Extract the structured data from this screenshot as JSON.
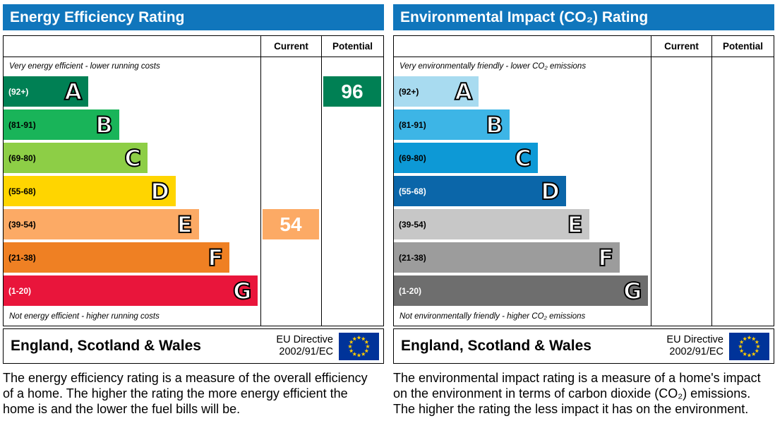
{
  "panels": [
    {
      "title": "Energy Efficiency Rating",
      "header_color": "#1076bc",
      "columns": {
        "current": "Current",
        "potential": "Potential"
      },
      "top_note": "Very energy efficient - lower running costs",
      "bottom_note": "Not energy efficient - higher running costs",
      "bands": [
        {
          "letter": "A",
          "range": "(92+)",
          "color": "#008054",
          "range_color": "#ffffff",
          "width_pct": 33
        },
        {
          "letter": "B",
          "range": "(81-91)",
          "color": "#19b459",
          "range_color": "#000000",
          "width_pct": 45
        },
        {
          "letter": "C",
          "range": "(69-80)",
          "color": "#8dce46",
          "range_color": "#000000",
          "width_pct": 56
        },
        {
          "letter": "D",
          "range": "(55-68)",
          "color": "#ffd500",
          "range_color": "#000000",
          "width_pct": 67
        },
        {
          "letter": "E",
          "range": "(39-54)",
          "color": "#fcaa65",
          "range_color": "#000000",
          "width_pct": 76
        },
        {
          "letter": "F",
          "range": "(21-38)",
          "color": "#ef8023",
          "range_color": "#000000",
          "width_pct": 88
        },
        {
          "letter": "G",
          "range": "(1-20)",
          "color": "#e9153b",
          "range_color": "#ffffff",
          "width_pct": 99
        }
      ],
      "current": {
        "value": "54",
        "band": "E",
        "band_index": 4,
        "color": "#fcaa65"
      },
      "potential": {
        "value": "96",
        "band": "A",
        "band_index": 0,
        "color": "#008054"
      },
      "footer": {
        "region": "England, Scotland & Wales",
        "directive_line1": "EU Directive",
        "directive_line2": "2002/91/EC"
      },
      "description": "The energy efficiency rating is a measure of the overall efficiency of a home. The higher the rating the more energy efficient the home is and the lower the fuel bills will be."
    },
    {
      "title": "Environmental Impact (CO₂) Rating",
      "header_color": "#1076bc",
      "columns": {
        "current": "Current",
        "potential": "Potential"
      },
      "top_note": "Very environmentally friendly - lower CO₂ emissions",
      "bottom_note": "Not environmentally friendly - higher CO₂ emissions",
      "bands": [
        {
          "letter": "A",
          "range": "(92+)",
          "color": "#a8dbf0",
          "range_color": "#000000",
          "width_pct": 33
        },
        {
          "letter": "B",
          "range": "(81-91)",
          "color": "#3db5e6",
          "range_color": "#000000",
          "width_pct": 45
        },
        {
          "letter": "C",
          "range": "(69-80)",
          "color": "#0d99d6",
          "range_color": "#000000",
          "width_pct": 56
        },
        {
          "letter": "D",
          "range": "(55-68)",
          "color": "#0b66a9",
          "range_color": "#ffffff",
          "width_pct": 67
        },
        {
          "letter": "E",
          "range": "(39-54)",
          "color": "#c7c7c7",
          "range_color": "#000000",
          "width_pct": 76
        },
        {
          "letter": "F",
          "range": "(21-38)",
          "color": "#9c9c9c",
          "range_color": "#000000",
          "width_pct": 88
        },
        {
          "letter": "G",
          "range": "(1-20)",
          "color": "#6e6e6e",
          "range_color": "#ffffff",
          "width_pct": 99
        }
      ],
      "current": null,
      "potential": null,
      "footer": {
        "region": "England, Scotland & Wales",
        "directive_line1": "EU Directive",
        "directive_line2": "2002/91/EC"
      },
      "description": "The environmental impact rating is a measure of a home's impact on the environment in terms of carbon dioxide (CO₂) emissions. The higher the rating the less impact it has on the environment."
    }
  ],
  "chart_data": [
    {
      "type": "bar",
      "title": "Energy Efficiency Rating",
      "categories": [
        "A (92+)",
        "B (81-91)",
        "C (69-80)",
        "D (55-68)",
        "E (39-54)",
        "F (21-38)",
        "G (1-20)"
      ],
      "values": [
        33,
        45,
        56,
        67,
        76,
        88,
        99
      ],
      "columns": [
        "Current",
        "Potential"
      ],
      "current_value": 54,
      "current_band": "E",
      "potential_value": 96,
      "potential_band": "A",
      "top_note": "Very energy efficient - lower running costs",
      "bottom_note": "Not energy efficient - higher running costs"
    },
    {
      "type": "bar",
      "title": "Environmental Impact (CO₂) Rating",
      "categories": [
        "A (92+)",
        "B (81-91)",
        "C (69-80)",
        "D (55-68)",
        "E (39-54)",
        "F (21-38)",
        "G (1-20)"
      ],
      "values": [
        33,
        45,
        56,
        67,
        76,
        88,
        99
      ],
      "columns": [
        "Current",
        "Potential"
      ],
      "current_value": null,
      "current_band": null,
      "potential_value": null,
      "potential_band": null,
      "top_note": "Very environmentally friendly - lower CO₂ emissions",
      "bottom_note": "Not environmentally friendly - higher CO₂ emissions"
    }
  ]
}
